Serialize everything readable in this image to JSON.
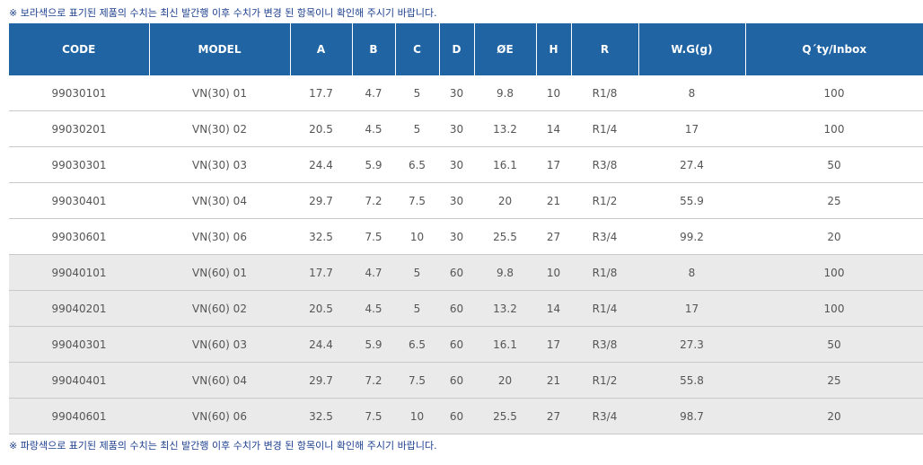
{
  "notes": {
    "top": "※ 보라색으로 표기된 제품의 수치는 최신 발간행 이후 수치가 변경 된 항목이니 확인해 주시기 바랍니다.",
    "bottom": "※ 파랑색으로 표기된 제품의 수치는 최신 발간행 이후 수치가 변경 된 항목이니 확인해 주시기 바랍니다."
  },
  "table": {
    "headers": [
      "CODE",
      "MODEL",
      "A",
      "B",
      "C",
      "D",
      "ØE",
      "H",
      "R",
      "W.G(g)",
      "Q´ty/Inbox"
    ],
    "rows": [
      [
        "99030101",
        "VN(30) 01",
        "17.7",
        "4.7",
        "5",
        "30",
        "9.8",
        "10",
        "R1/8",
        "8",
        "100"
      ],
      [
        "99030201",
        "VN(30) 02",
        "20.5",
        "4.5",
        "5",
        "30",
        "13.2",
        "14",
        "R1/4",
        "17",
        "100"
      ],
      [
        "99030301",
        "VN(30) 03",
        "24.4",
        "5.9",
        "6.5",
        "30",
        "16.1",
        "17",
        "R3/8",
        "27.4",
        "50"
      ],
      [
        "99030401",
        "VN(30) 04",
        "29.7",
        "7.2",
        "7.5",
        "30",
        "20",
        "21",
        "R1/2",
        "55.9",
        "25"
      ],
      [
        "99030601",
        "VN(30) 06",
        "32.5",
        "7.5",
        "10",
        "30",
        "25.5",
        "27",
        "R3/4",
        "99.2",
        "20"
      ],
      [
        "99040101",
        "VN(60) 01",
        "17.7",
        "4.7",
        "5",
        "60",
        "9.8",
        "10",
        "R1/8",
        "8",
        "100"
      ],
      [
        "99040201",
        "VN(60) 02",
        "20.5",
        "4.5",
        "5",
        "60",
        "13.2",
        "14",
        "R1/4",
        "17",
        "100"
      ],
      [
        "99040301",
        "VN(60) 03",
        "24.4",
        "5.9",
        "6.5",
        "60",
        "16.1",
        "17",
        "R3/8",
        "27.3",
        "50"
      ],
      [
        "99040401",
        "VN(60) 04",
        "29.7",
        "7.2",
        "7.5",
        "60",
        "20",
        "21",
        "R1/2",
        "55.8",
        "25"
      ],
      [
        "99040601",
        "VN(60) 06",
        "32.5",
        "7.5",
        "10",
        "60",
        "25.5",
        "27",
        "R3/4",
        "98.7",
        "20"
      ]
    ],
    "shaded_row_indices": [
      5,
      6,
      7,
      8,
      9
    ]
  },
  "colors": {
    "header_bg": "#2064a4",
    "header_text": "#ffffff",
    "note_text": "#1d3f8f",
    "shaded_row_bg": "#eaeaea",
    "cell_text": "#555555"
  }
}
